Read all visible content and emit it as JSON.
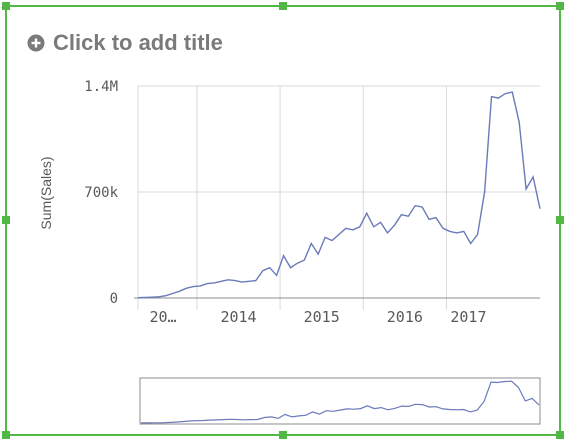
{
  "title": {
    "placeholder": "Click to add title",
    "add_icon": "plus-circle-icon"
  },
  "colors": {
    "selection_border": "#52b845",
    "line": "#6b7ab8",
    "grid": "#d9d9d9",
    "axis_text": "#595959",
    "title_text": "#7a7a7a"
  },
  "chart_data": {
    "type": "line",
    "title": "",
    "xlabel": "",
    "ylabel": "Sum(Sales)",
    "ylim": [
      0,
      1400000
    ],
    "y_ticks": [
      {
        "value": 0,
        "label": "0"
      },
      {
        "value": 700000,
        "label": "700k"
      },
      {
        "value": 1400000,
        "label": "1.4M"
      }
    ],
    "x_ticks": [
      {
        "index": 0,
        "label": "20…"
      },
      {
        "index": 9,
        "label": "2014"
      },
      {
        "index": 21,
        "label": "2015"
      },
      {
        "index": 33,
        "label": "2016"
      },
      {
        "index": 45,
        "label": "2017"
      }
    ],
    "grid": true,
    "legend": "none",
    "series": [
      {
        "values": [
          2000,
          3000,
          5000,
          8000,
          15000,
          30000,
          45000,
          65000,
          75000,
          80000,
          95000,
          100000,
          110000,
          120000,
          115000,
          105000,
          110000,
          115000,
          180000,
          200000,
          150000,
          280000,
          200000,
          230000,
          250000,
          360000,
          290000,
          400000,
          380000,
          420000,
          460000,
          450000,
          470000,
          560000,
          470000,
          500000,
          430000,
          480000,
          550000,
          540000,
          610000,
          600000,
          520000,
          530000,
          460000,
          440000,
          430000,
          440000,
          360000,
          420000,
          700000,
          1330000,
          1320000,
          1350000,
          1360000,
          1160000,
          720000,
          800000,
          590000
        ]
      }
    ]
  },
  "scrollbar": {}
}
